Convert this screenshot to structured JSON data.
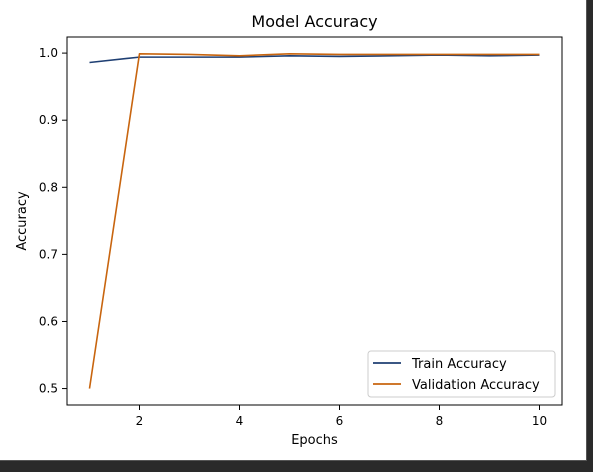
{
  "chart_data": {
    "type": "line",
    "title": "Model Accuracy",
    "xlabel": "Epochs",
    "ylabel": "Accuracy",
    "x": [
      1,
      2,
      3,
      4,
      5,
      6,
      7,
      8,
      9,
      10
    ],
    "xlim": [
      0.55,
      10.45
    ],
    "ylim": [
      0.4755,
      1.024
    ],
    "xticks": [
      2,
      4,
      6,
      8,
      10
    ],
    "xtick_labels": [
      "2",
      "4",
      "6",
      "8",
      "10"
    ],
    "yticks": [
      0.5,
      0.6,
      0.7,
      0.8,
      0.9,
      1.0
    ],
    "ytick_labels": [
      "0.5",
      "0.6",
      "0.7",
      "0.8",
      "0.9",
      "1.0"
    ],
    "grid": false,
    "legend_position": "lower-right",
    "series": [
      {
        "name": "Train Accuracy",
        "color": "#1f3f73",
        "values": [
          0.986,
          0.994,
          0.994,
          0.994,
          0.996,
          0.995,
          0.996,
          0.997,
          0.996,
          0.997
        ]
      },
      {
        "name": "Validation Accuracy",
        "color": "#c8650f",
        "values": [
          0.5,
          0.999,
          0.998,
          0.996,
          0.999,
          0.998,
          0.998,
          0.998,
          0.998,
          0.998
        ]
      }
    ]
  }
}
